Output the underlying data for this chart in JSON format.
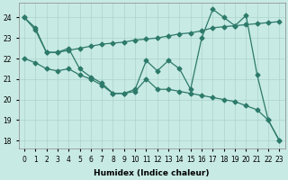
{
  "xlabel": "Humidex (Indice chaleur)",
  "bg_color": "#c8eae4",
  "grid_color": "#aad4cc",
  "line_color": "#2d7a6a",
  "xlim": [
    -0.5,
    23.5
  ],
  "ylim": [
    17.6,
    24.7
  ],
  "yticks": [
    18,
    19,
    20,
    21,
    22,
    23,
    24
  ],
  "xticks": [
    0,
    1,
    2,
    3,
    4,
    5,
    6,
    7,
    8,
    9,
    10,
    11,
    12,
    13,
    14,
    15,
    16,
    17,
    18,
    19,
    20,
    21,
    22,
    23
  ],
  "line1_x": [
    0,
    1,
    2,
    3,
    4,
    5,
    6,
    7,
    8,
    9,
    10,
    11,
    12,
    13,
    14,
    15,
    16,
    17,
    18,
    19,
    20,
    21,
    22,
    23
  ],
  "line1_y": [
    24.0,
    23.4,
    22.3,
    22.3,
    22.5,
    21.5,
    21.1,
    20.8,
    20.3,
    20.3,
    20.5,
    21.9,
    21.4,
    21.9,
    21.5,
    20.5,
    23.0,
    24.4,
    24.0,
    23.6,
    24.1,
    21.2,
    19.0,
    18.0
  ],
  "line2_x": [
    0,
    1,
    2,
    3,
    4,
    5,
    6,
    7,
    8,
    9,
    10,
    11,
    12,
    13,
    14,
    15,
    16,
    17,
    18,
    19,
    20,
    21,
    22,
    23
  ],
  "line2_y": [
    24.0,
    23.5,
    22.3,
    22.3,
    22.4,
    22.5,
    22.6,
    22.7,
    22.75,
    22.8,
    22.9,
    22.95,
    23.0,
    23.1,
    23.2,
    23.25,
    23.35,
    23.5,
    23.55,
    23.6,
    23.65,
    23.7,
    23.75,
    23.8
  ],
  "line3_x": [
    0,
    1,
    2,
    3,
    4,
    5,
    6,
    7,
    8,
    9,
    10,
    11,
    12,
    13,
    14,
    15,
    16,
    17,
    18,
    19,
    20,
    21,
    22,
    23
  ],
  "line3_y": [
    22.0,
    21.8,
    21.5,
    21.4,
    21.5,
    21.2,
    21.0,
    20.7,
    20.3,
    20.3,
    20.4,
    21.0,
    20.5,
    20.5,
    20.4,
    20.3,
    20.2,
    20.1,
    20.0,
    19.9,
    19.7,
    19.5,
    19.0,
    18.0
  ]
}
